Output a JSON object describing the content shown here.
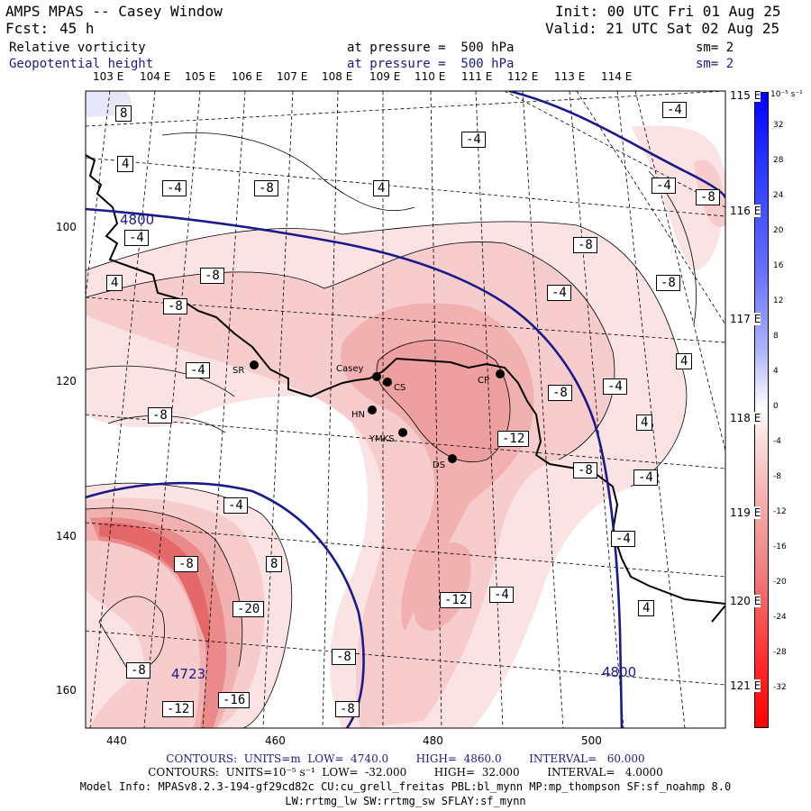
{
  "header": {
    "title": "AMPS MPAS -- Casey Window",
    "fcst_label": "Fcst:",
    "fcst_value": "45 h",
    "init": "Init: 00 UTC Fri 01 Aug 25",
    "valid": "Valid: 21 UTC Sat 02 Aug 25",
    "field1": "Relative vorticity",
    "field1_level": "at pressure =  500 hPa",
    "field1_sm": "sm= 2",
    "field2": "Geopotential height",
    "field2_level": "at pressure =  500 hPa",
    "field2_sm": "sm= 2"
  },
  "axes": {
    "top_lon_labels": [
      "103 E",
      "104 E",
      "105 E",
      "106 E",
      "107 E",
      "108 E",
      "109 E",
      "110 E",
      "111 E",
      "112 E",
      "113 E",
      "114 E"
    ],
    "right_lon_labels": [
      "115 E",
      "116 E",
      "117 E",
      "118 E",
      "119 E",
      "120 E",
      "121 E"
    ],
    "left_y_labels": [
      "100",
      "120",
      "140",
      "160"
    ],
    "bottom_x_labels": [
      "440",
      "460",
      "480",
      "500"
    ]
  },
  "colorbar": {
    "unit": "10⁻⁵ s⁻¹",
    "levels": [
      "32",
      "28",
      "24",
      "20",
      "16",
      "12",
      "8",
      "4",
      "0",
      "-4",
      "-8",
      "-12",
      "-16",
      "-20",
      "-24",
      "-28",
      "-32"
    ],
    "positive_color": "#1e3cff",
    "negative_color": "#ff1e1e"
  },
  "stations": [
    {
      "label": "SR"
    },
    {
      "label": "Casey"
    },
    {
      "label": "CS"
    },
    {
      "label": "HN"
    },
    {
      "label": "YMKS"
    },
    {
      "label": "CP"
    },
    {
      "label": "DS"
    }
  ],
  "height_labels": [
    "4800",
    "4800",
    "4723"
  ],
  "vorticity_labels": [
    "8",
    "-4",
    "4",
    "-4",
    "-4",
    "4",
    "-8",
    "-4",
    "-8",
    "-4",
    "4",
    "-8",
    "-8",
    "-8",
    "-4",
    "-4",
    "-8",
    "-4",
    "-8",
    "4",
    "-12",
    "-8",
    "4",
    "-4",
    "-8",
    "-4",
    "-12",
    "-4",
    "-20",
    "4",
    "-8",
    "-8",
    "-8",
    "-16",
    "-12",
    "8",
    "-4",
    "-8"
  ],
  "footer": {
    "line1": "CONTOURS:  UNITS=m  LOW=  4740.0        HIGH=  4860.0        INTERVAL=   60.000",
    "line2": "CONTOURS:  UNITS=10⁻⁵ s⁻¹  LOW=  -32.000        HIGH=  32.000        INTERVAL=   4.0000",
    "line3": "Model Info: MPASv8.2.3-194-gf29cd82c CU:cu_grell_freitas PBL:bl_mynn MP:mp_thompson SF:sf_noahmp 8.0",
    "line4": "LW:rrtmg_lw SW:rrtmg_sw SFLAY:sf_mynn"
  }
}
